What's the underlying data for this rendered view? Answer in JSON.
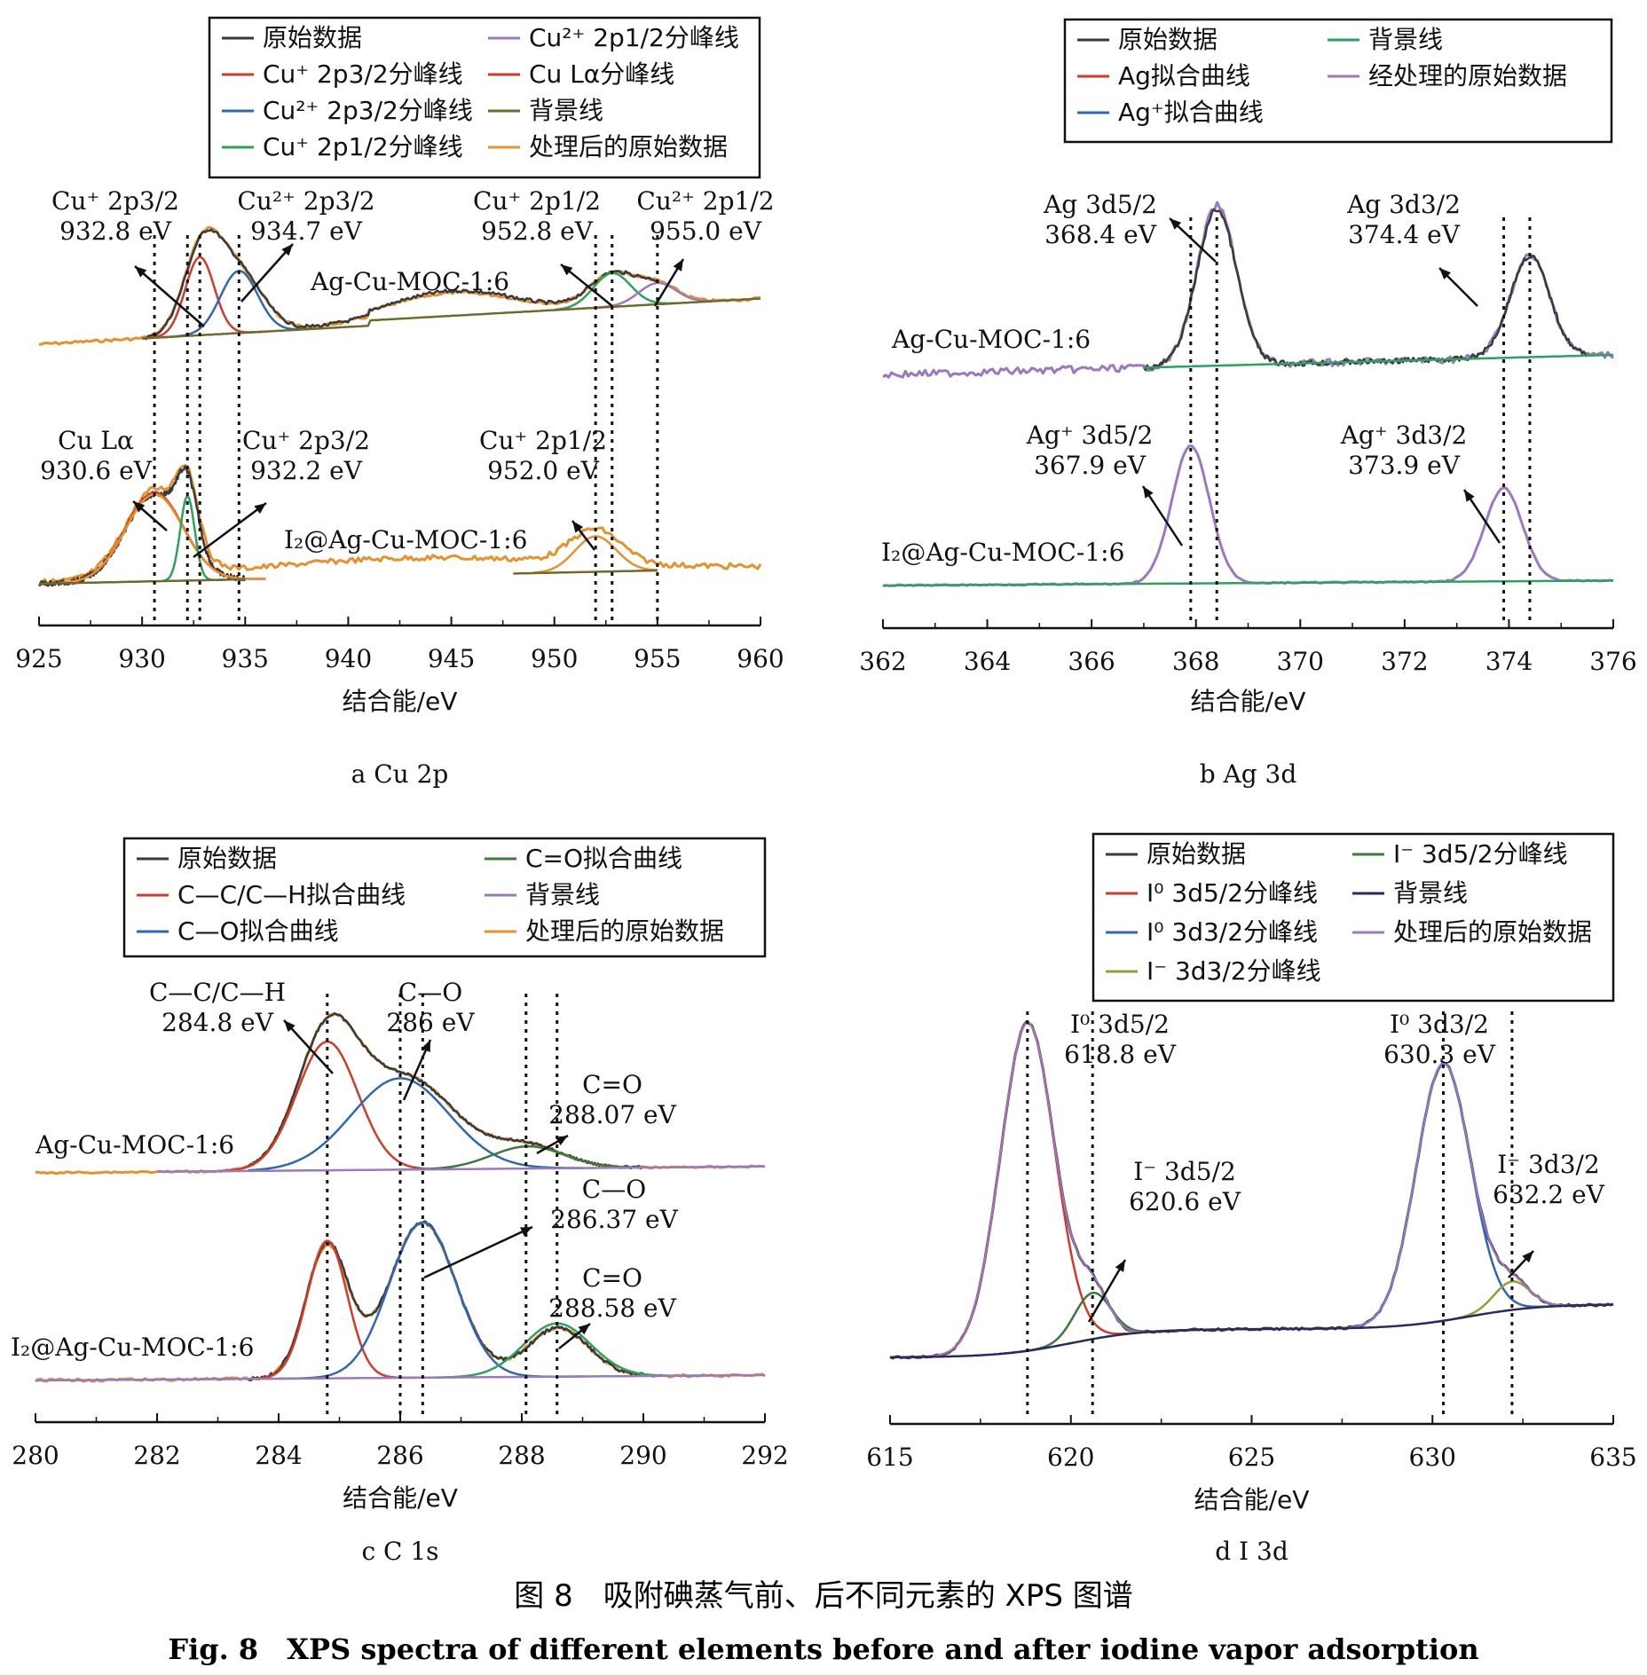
{
  "figure": {
    "caption_cn": "图 8　吸附碘蒸气前、后不同元素的 XPS 图谱",
    "caption_en": "Fig. 8　XPS spectra of different elements before and after iodine vapor adsorption"
  },
  "colors": {
    "raw": "#3a3a3a",
    "red": "#d23a2a",
    "blue": "#2f67b3",
    "green": "#2ba35c",
    "purple": "#9b78c2",
    "olive": "#6f6a2c",
    "orange": "#e8912a",
    "navy": "#2a2a5e",
    "darkgreen": "#3a7a3a",
    "yellowolive": "#9a9a3a"
  },
  "chart_data": [
    {
      "type": "line",
      "panel_label": "a Cu 2p",
      "xlabel": "结合能/eV",
      "ylabel": "",
      "xlim": [
        925,
        960
      ],
      "xticks": [
        "925",
        "930",
        "935",
        "940",
        "945",
        "950",
        "955",
        "960"
      ],
      "legend": [
        {
          "label": "原始数据",
          "color": "raw"
        },
        {
          "label": "Cu⁺ 2p3/2分峰线",
          "color": "red"
        },
        {
          "label": "Cu²⁺ 2p3/2分峰线",
          "color": "blue"
        },
        {
          "label": "Cu⁺ 2p1/2分峰线",
          "color": "green"
        },
        {
          "label": "Cu²⁺ 2p1/2分峰线",
          "color": "purple"
        },
        {
          "label": "Cu Lα分峰线",
          "color": "red"
        },
        {
          "label": "背景线",
          "color": "olive"
        },
        {
          "label": "处理后的原始数据",
          "color": "orange"
        }
      ],
      "series": [
        {
          "name": "Ag-Cu-MOC-1:6"
        },
        {
          "name": "I₂@Ag-Cu-MOC-1:6"
        }
      ],
      "annotations": [
        {
          "text": "Cu⁺ 2p3/2",
          "value": "932.8 eV"
        },
        {
          "text": "Cu²⁺ 2p3/2",
          "value": "934.7 eV"
        },
        {
          "text": "Cu⁺ 2p1/2",
          "value": "952.8 eV"
        },
        {
          "text": "Cu²⁺ 2p1/2",
          "value": "955.0 eV"
        },
        {
          "text": "Cu Lα",
          "value": "930.6 eV"
        },
        {
          "text": "Cu⁺ 2p3/2",
          "value": "932.2 eV"
        },
        {
          "text": "Cu⁺ 2p1/2",
          "value": "952.0 eV"
        }
      ]
    },
    {
      "type": "line",
      "panel_label": "b Ag 3d",
      "xlabel": "结合能/eV",
      "ylabel": "",
      "xlim": [
        362,
        376
      ],
      "xticks": [
        "362",
        "364",
        "366",
        "368",
        "370",
        "372",
        "374",
        "376"
      ],
      "legend": [
        {
          "label": "原始数据",
          "color": "raw"
        },
        {
          "label": "Ag拟合曲线",
          "color": "red"
        },
        {
          "label": "Ag⁺拟合曲线",
          "color": "blue"
        },
        {
          "label": "背景线",
          "color": "green"
        },
        {
          "label": "经处理的原始数据",
          "color": "purple"
        }
      ],
      "series": [
        {
          "name": "Ag-Cu-MOC-1:6"
        },
        {
          "name": "I₂@Ag-Cu-MOC-1:6"
        }
      ],
      "annotations": [
        {
          "text": "Ag 3d5/2",
          "value": "368.4 eV"
        },
        {
          "text": "Ag 3d3/2",
          "value": "374.4 eV"
        },
        {
          "text": "Ag⁺ 3d5/2",
          "value": "367.9 eV"
        },
        {
          "text": "Ag⁺ 3d3/2",
          "value": "373.9 eV"
        }
      ]
    },
    {
      "type": "line",
      "panel_label": "c C 1s",
      "xlabel": "结合能/eV",
      "ylabel": "",
      "xlim": [
        280,
        292
      ],
      "xticks": [
        "280",
        "282",
        "284",
        "286",
        "288",
        "290",
        "292"
      ],
      "legend": [
        {
          "label": "原始数据",
          "color": "raw"
        },
        {
          "label": "C—C/C—H拟合曲线",
          "color": "red"
        },
        {
          "label": "C—O拟合曲线",
          "color": "blue"
        },
        {
          "label": "C=O拟合曲线",
          "color": "darkgreen"
        },
        {
          "label": "背景线",
          "color": "purple"
        },
        {
          "label": "处理后的原始数据",
          "color": "orange"
        }
      ],
      "series": [
        {
          "name": "Ag-Cu-MOC-1:6"
        },
        {
          "name": "I₂@Ag-Cu-MOC-1:6"
        }
      ],
      "annotations": [
        {
          "text": "C—C/C—H",
          "value": "284.8 eV"
        },
        {
          "text": "C—O",
          "value": "286 eV"
        },
        {
          "text": "C=O",
          "value": "288.07 eV"
        },
        {
          "text": "C—O",
          "value": "286.37 eV"
        },
        {
          "text": "C=O",
          "value": "288.58 eV"
        }
      ]
    },
    {
      "type": "line",
      "panel_label": "d I 3d",
      "xlabel": "结合能/eV",
      "ylabel": "",
      "xlim": [
        615,
        635
      ],
      "xticks": [
        "615",
        "620",
        "625",
        "630",
        "635"
      ],
      "legend": [
        {
          "label": "原始数据",
          "color": "raw"
        },
        {
          "label": "I⁰ 3d5/2分峰线",
          "color": "red"
        },
        {
          "label": "I⁰ 3d3/2分峰线",
          "color": "blue"
        },
        {
          "label": "I⁻ 3d3/2分峰线",
          "color": "yellowolive"
        },
        {
          "label": "I⁻ 3d5/2分峰线",
          "color": "darkgreen"
        },
        {
          "label": "背景线",
          "color": "navy"
        },
        {
          "label": "处理后的原始数据",
          "color": "purple"
        }
      ],
      "series": [],
      "annotations": [
        {
          "text": "I⁰ 3d5/2",
          "value": "618.8 eV"
        },
        {
          "text": "I⁰ 3d3/2",
          "value": "630.3 eV"
        },
        {
          "text": "I⁻ 3d5/2",
          "value": "620.6 eV"
        },
        {
          "text": "I⁻ 3d3/2",
          "value": "632.2 eV"
        }
      ]
    }
  ]
}
